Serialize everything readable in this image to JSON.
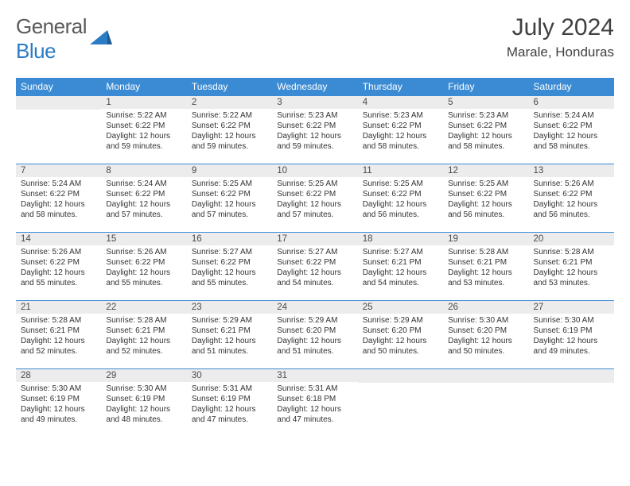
{
  "logo": {
    "text_gray": "General",
    "text_blue": "Blue"
  },
  "title": "July 2024",
  "location": "Marale, Honduras",
  "colors": {
    "header_bg": "#3b8bd4",
    "header_text": "#ffffff",
    "daynum_bg": "#ececec",
    "border": "#3b8bd4",
    "text": "#333333",
    "logo_gray": "#5a5a5a",
    "logo_blue": "#2b7cc4"
  },
  "weekdays": [
    "Sunday",
    "Monday",
    "Tuesday",
    "Wednesday",
    "Thursday",
    "Friday",
    "Saturday"
  ],
  "weeks": [
    [
      null,
      {
        "n": "1",
        "sr": "Sunrise: 5:22 AM",
        "ss": "Sunset: 6:22 PM",
        "dl": "Daylight: 12 hours and 59 minutes."
      },
      {
        "n": "2",
        "sr": "Sunrise: 5:22 AM",
        "ss": "Sunset: 6:22 PM",
        "dl": "Daylight: 12 hours and 59 minutes."
      },
      {
        "n": "3",
        "sr": "Sunrise: 5:23 AM",
        "ss": "Sunset: 6:22 PM",
        "dl": "Daylight: 12 hours and 59 minutes."
      },
      {
        "n": "4",
        "sr": "Sunrise: 5:23 AM",
        "ss": "Sunset: 6:22 PM",
        "dl": "Daylight: 12 hours and 58 minutes."
      },
      {
        "n": "5",
        "sr": "Sunrise: 5:23 AM",
        "ss": "Sunset: 6:22 PM",
        "dl": "Daylight: 12 hours and 58 minutes."
      },
      {
        "n": "6",
        "sr": "Sunrise: 5:24 AM",
        "ss": "Sunset: 6:22 PM",
        "dl": "Daylight: 12 hours and 58 minutes."
      }
    ],
    [
      {
        "n": "7",
        "sr": "Sunrise: 5:24 AM",
        "ss": "Sunset: 6:22 PM",
        "dl": "Daylight: 12 hours and 58 minutes."
      },
      {
        "n": "8",
        "sr": "Sunrise: 5:24 AM",
        "ss": "Sunset: 6:22 PM",
        "dl": "Daylight: 12 hours and 57 minutes."
      },
      {
        "n": "9",
        "sr": "Sunrise: 5:25 AM",
        "ss": "Sunset: 6:22 PM",
        "dl": "Daylight: 12 hours and 57 minutes."
      },
      {
        "n": "10",
        "sr": "Sunrise: 5:25 AM",
        "ss": "Sunset: 6:22 PM",
        "dl": "Daylight: 12 hours and 57 minutes."
      },
      {
        "n": "11",
        "sr": "Sunrise: 5:25 AM",
        "ss": "Sunset: 6:22 PM",
        "dl": "Daylight: 12 hours and 56 minutes."
      },
      {
        "n": "12",
        "sr": "Sunrise: 5:25 AM",
        "ss": "Sunset: 6:22 PM",
        "dl": "Daylight: 12 hours and 56 minutes."
      },
      {
        "n": "13",
        "sr": "Sunrise: 5:26 AM",
        "ss": "Sunset: 6:22 PM",
        "dl": "Daylight: 12 hours and 56 minutes."
      }
    ],
    [
      {
        "n": "14",
        "sr": "Sunrise: 5:26 AM",
        "ss": "Sunset: 6:22 PM",
        "dl": "Daylight: 12 hours and 55 minutes."
      },
      {
        "n": "15",
        "sr": "Sunrise: 5:26 AM",
        "ss": "Sunset: 6:22 PM",
        "dl": "Daylight: 12 hours and 55 minutes."
      },
      {
        "n": "16",
        "sr": "Sunrise: 5:27 AM",
        "ss": "Sunset: 6:22 PM",
        "dl": "Daylight: 12 hours and 55 minutes."
      },
      {
        "n": "17",
        "sr": "Sunrise: 5:27 AM",
        "ss": "Sunset: 6:22 PM",
        "dl": "Daylight: 12 hours and 54 minutes."
      },
      {
        "n": "18",
        "sr": "Sunrise: 5:27 AM",
        "ss": "Sunset: 6:21 PM",
        "dl": "Daylight: 12 hours and 54 minutes."
      },
      {
        "n": "19",
        "sr": "Sunrise: 5:28 AM",
        "ss": "Sunset: 6:21 PM",
        "dl": "Daylight: 12 hours and 53 minutes."
      },
      {
        "n": "20",
        "sr": "Sunrise: 5:28 AM",
        "ss": "Sunset: 6:21 PM",
        "dl": "Daylight: 12 hours and 53 minutes."
      }
    ],
    [
      {
        "n": "21",
        "sr": "Sunrise: 5:28 AM",
        "ss": "Sunset: 6:21 PM",
        "dl": "Daylight: 12 hours and 52 minutes."
      },
      {
        "n": "22",
        "sr": "Sunrise: 5:28 AM",
        "ss": "Sunset: 6:21 PM",
        "dl": "Daylight: 12 hours and 52 minutes."
      },
      {
        "n": "23",
        "sr": "Sunrise: 5:29 AM",
        "ss": "Sunset: 6:21 PM",
        "dl": "Daylight: 12 hours and 51 minutes."
      },
      {
        "n": "24",
        "sr": "Sunrise: 5:29 AM",
        "ss": "Sunset: 6:20 PM",
        "dl": "Daylight: 12 hours and 51 minutes."
      },
      {
        "n": "25",
        "sr": "Sunrise: 5:29 AM",
        "ss": "Sunset: 6:20 PM",
        "dl": "Daylight: 12 hours and 50 minutes."
      },
      {
        "n": "26",
        "sr": "Sunrise: 5:30 AM",
        "ss": "Sunset: 6:20 PM",
        "dl": "Daylight: 12 hours and 50 minutes."
      },
      {
        "n": "27",
        "sr": "Sunrise: 5:30 AM",
        "ss": "Sunset: 6:19 PM",
        "dl": "Daylight: 12 hours and 49 minutes."
      }
    ],
    [
      {
        "n": "28",
        "sr": "Sunrise: 5:30 AM",
        "ss": "Sunset: 6:19 PM",
        "dl": "Daylight: 12 hours and 49 minutes."
      },
      {
        "n": "29",
        "sr": "Sunrise: 5:30 AM",
        "ss": "Sunset: 6:19 PM",
        "dl": "Daylight: 12 hours and 48 minutes."
      },
      {
        "n": "30",
        "sr": "Sunrise: 5:31 AM",
        "ss": "Sunset: 6:19 PM",
        "dl": "Daylight: 12 hours and 47 minutes."
      },
      {
        "n": "31",
        "sr": "Sunrise: 5:31 AM",
        "ss": "Sunset: 6:18 PM",
        "dl": "Daylight: 12 hours and 47 minutes."
      },
      null,
      null,
      null
    ]
  ]
}
